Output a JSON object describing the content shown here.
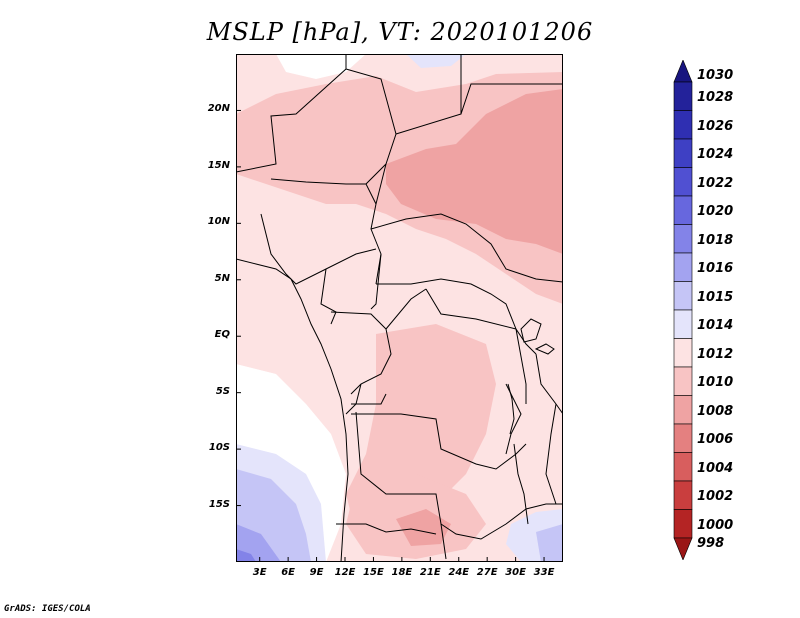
{
  "title": "MSLP [hPa], VT: 2020101206",
  "footer": "GrADS: IGES/COLA",
  "y_axis": {
    "labels": [
      "20N",
      "15N",
      "10N",
      "5N",
      "EQ",
      "5S",
      "10S",
      "15S"
    ],
    "values": [
      20,
      15,
      10,
      5,
      0,
      -5,
      -10,
      -15
    ]
  },
  "x_axis": {
    "labels": [
      "3E",
      "6E",
      "9E",
      "12E",
      "15E",
      "18E",
      "21E",
      "24E",
      "27E",
      "30E",
      "33E"
    ],
    "values": [
      3,
      6,
      9,
      12,
      15,
      18,
      21,
      24,
      27,
      30,
      33
    ]
  },
  "map_extent": {
    "lon": [
      0.5,
      35
    ],
    "lat": [
      -20,
      25
    ]
  },
  "colorbar": {
    "labels": [
      "1030",
      "1028",
      "1026",
      "1024",
      "1022",
      "1020",
      "1018",
      "1016",
      "1015",
      "1014",
      "1012",
      "1010",
      "1008",
      "1006",
      "1004",
      "1002",
      "1000",
      "998"
    ],
    "colors": [
      "#18157f",
      "#23229a",
      "#2f2fb2",
      "#3e40c4",
      "#5050d2",
      "#6767de",
      "#8383e8",
      "#a3a3f0",
      "#c5c5f6",
      "#e4e4fb",
      "#fde3e3",
      "#f8c4c4",
      "#efa3a3",
      "#e48080",
      "#d85e5e",
      "#c93e3e",
      "#b42424",
      "#9a1616"
    ]
  }
}
